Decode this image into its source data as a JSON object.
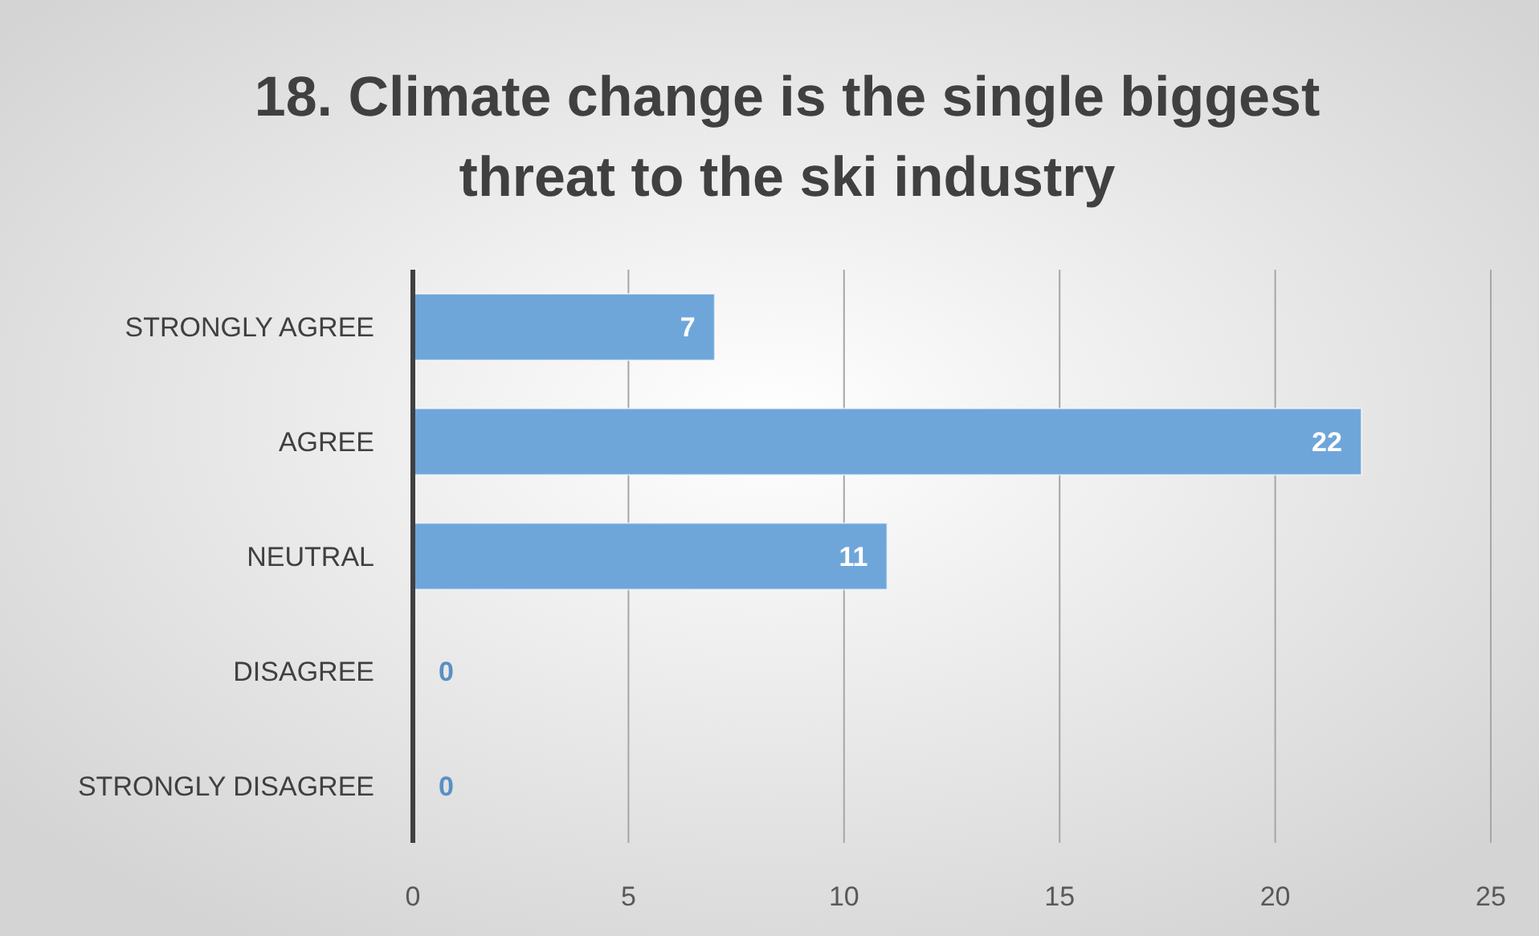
{
  "chart_data": {
    "type": "bar",
    "orientation": "horizontal",
    "title": "18. Climate change is the single biggest threat to the ski industry",
    "categories": [
      "STRONGLY AGREE",
      "AGREE",
      "NEUTRAL",
      "DISAGREE",
      "STRONGLY DISAGREE"
    ],
    "values": [
      7,
      22,
      11,
      0,
      0
    ],
    "color": "#6fa6da",
    "xlim": [
      0,
      25
    ],
    "xticks": [
      0,
      5,
      10,
      15,
      20,
      25
    ],
    "grid": "x",
    "data_labels": true
  }
}
